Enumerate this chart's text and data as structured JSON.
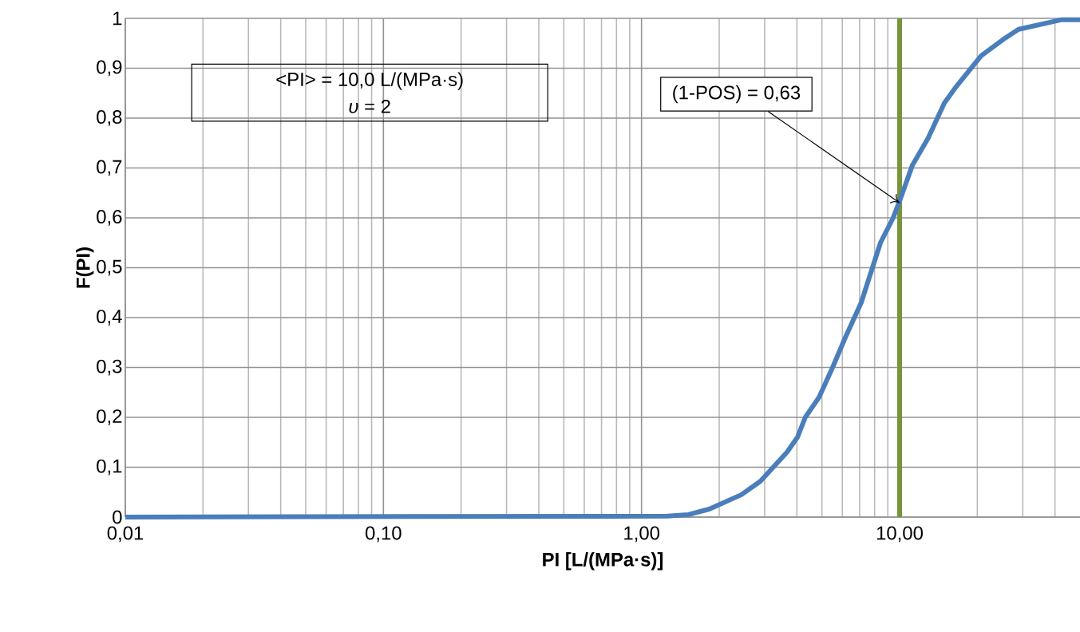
{
  "chart_data": {
    "type": "line",
    "xlabel": "PI [L/(MPa·s)]",
    "ylabel": "F(PI)",
    "log": "x",
    "grid": true,
    "x": [
      0.01,
      1.26,
      1.52,
      1.83,
      2.44,
      2.89,
      3.66,
      4.02,
      4.31,
      4.87,
      5.5,
      6.16,
      7.1,
      8.43,
      9.44,
      10.1,
      11.2,
      12.9,
      14.9,
      16.4,
      20.7,
      25.1,
      28.9,
      42.2,
      50
    ],
    "series": [
      {
        "color": "#4a7ebb",
        "values": [
          0,
          0.002,
          0.005,
          0.016,
          0.045,
          0.072,
          0.13,
          0.16,
          0.2,
          0.24,
          0.3,
          0.36,
          0.43,
          0.55,
          0.6,
          0.64,
          0.705,
          0.76,
          0.83,
          0.86,
          0.925,
          0.957,
          0.978,
          0.997,
          0.997
        ]
      }
    ],
    "xlim": [
      0.01,
      50
    ],
    "ylim": [
      0,
      1
    ],
    "xticks": [
      {
        "value": 0.01,
        "label": "0,01"
      },
      {
        "value": 0.1,
        "label": "0,10"
      },
      {
        "value": 1,
        "label": "1,00"
      },
      {
        "value": 10,
        "label": "10,00"
      }
    ],
    "yticks": [
      0,
      {
        "value": 0.1,
        "label": "0,1"
      },
      {
        "value": 0.2,
        "label": "0,2"
      },
      {
        "value": 0.3,
        "label": "0,3"
      },
      {
        "value": 0.4,
        "label": "0,4"
      },
      {
        "value": 0.5,
        "label": "0,5"
      },
      {
        "value": 0.6,
        "label": "0,6"
      },
      {
        "value": 0.7,
        "label": "0,7"
      },
      {
        "value": 0.8,
        "label": "0,8"
      },
      {
        "value": 0.9,
        "label": "0,9"
      },
      1
    ],
    "ref_lines": [
      {
        "axis": "x",
        "value": 10,
        "color": "#77933c"
      }
    ],
    "annotations": [
      "<PI> = 10,0 L/(MPa·s)",
      "*υ* = 2",
      {
        "text": "(1-POS) = 0,63",
        "x": 10,
        "y": 0.63
      }
    ]
  }
}
